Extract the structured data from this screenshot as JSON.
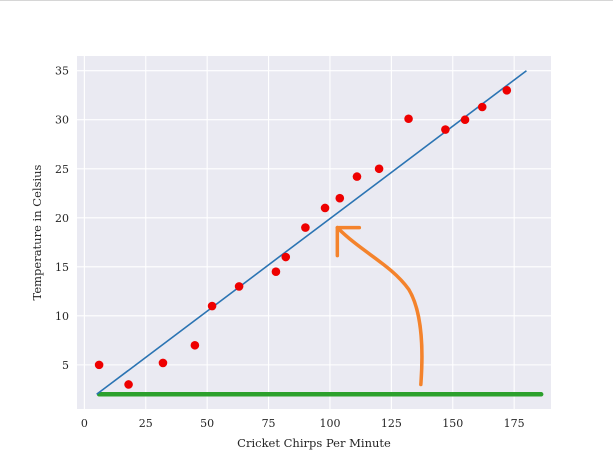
{
  "chart_data": {
    "type": "scatter",
    "xlabel": "Cricket Chirps Per Minute",
    "ylabel": "Temperature in Celsius",
    "xlim": [
      -3,
      190
    ],
    "ylim": [
      0.5,
      36.5
    ],
    "xticks": [
      0,
      25,
      50,
      75,
      100,
      125,
      150,
      175
    ],
    "yticks": [
      5,
      10,
      15,
      20,
      25,
      30,
      35
    ],
    "grid": true,
    "points": [
      {
        "x": 6,
        "y": 5
      },
      {
        "x": 18,
        "y": 3
      },
      {
        "x": 32,
        "y": 5.2
      },
      {
        "x": 45,
        "y": 7
      },
      {
        "x": 52,
        "y": 11
      },
      {
        "x": 63,
        "y": 13
      },
      {
        "x": 78,
        "y": 14.5
      },
      {
        "x": 82,
        "y": 16
      },
      {
        "x": 90,
        "y": 19
      },
      {
        "x": 98,
        "y": 21
      },
      {
        "x": 104,
        "y": 22
      },
      {
        "x": 111,
        "y": 24.2
      },
      {
        "x": 120,
        "y": 25
      },
      {
        "x": 132,
        "y": 30.1
      },
      {
        "x": 147,
        "y": 29
      },
      {
        "x": 155,
        "y": 30
      },
      {
        "x": 162,
        "y": 31.3
      },
      {
        "x": 172,
        "y": 33
      }
    ],
    "fit_line": {
      "x": [
        5,
        180
      ],
      "y": [
        2,
        35
      ]
    },
    "baseline": {
      "x": [
        6,
        186
      ],
      "y": [
        2,
        2
      ]
    },
    "annotation_arrow": {
      "from": [
        137,
        3
      ],
      "to": [
        103,
        19
      ]
    },
    "colors": {
      "background": "#eaeaf2",
      "grid": "#ffffff",
      "points": "#ee0000",
      "fit_line": "#2b74b3",
      "baseline": "#2ca02c",
      "arrow": "#f4832c",
      "text": "#262626"
    }
  }
}
